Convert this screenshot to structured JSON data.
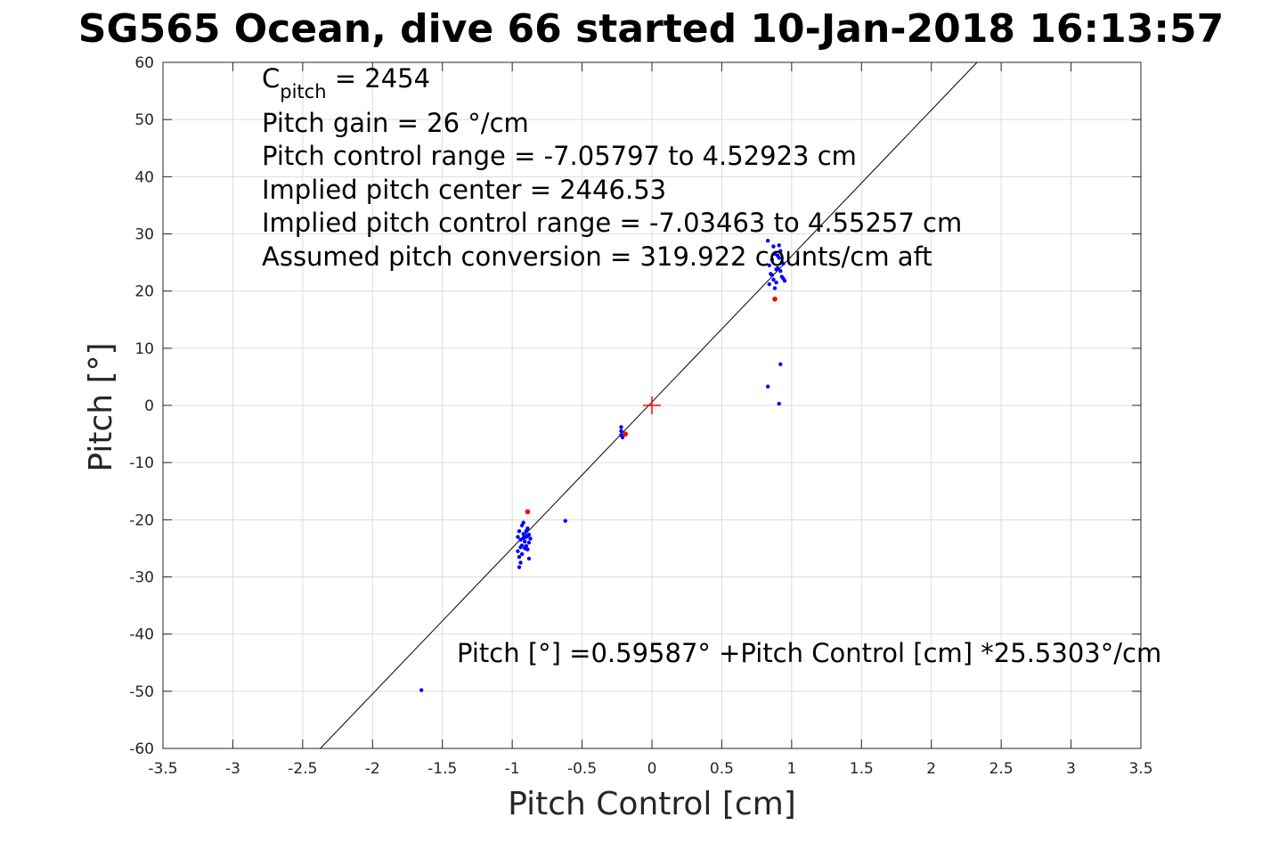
{
  "chart_data": {
    "type": "scatter",
    "title": "SG565 Ocean, dive 66 started 10-Jan-2018 16:13:57",
    "xlabel": "Pitch Control [cm]",
    "ylabel": "Pitch [°]",
    "xlim": [
      -3.5,
      3.5
    ],
    "ylim": [
      -60,
      60
    ],
    "x_ticks": [
      -3.5,
      -3,
      -2.5,
      -2,
      -1.5,
      -1,
      -0.5,
      0,
      0.5,
      1,
      1.5,
      2,
      2.5,
      3,
      3.5
    ],
    "x_tick_labels": [
      "-3.5",
      "-3",
      "-2.5",
      "-2",
      "-1.5",
      "-1",
      "-0.5",
      "0",
      "0.5",
      "1",
      "1.5",
      "2",
      "2.5",
      "3",
      "3.5"
    ],
    "y_ticks": [
      60,
      50,
      40,
      30,
      20,
      10,
      0,
      -10,
      -20,
      -30,
      -40,
      -50,
      -60
    ],
    "y_tick_labels": [
      "60",
      "50",
      "40",
      "30",
      "20",
      "10",
      "0",
      "-10",
      "-20",
      "-30",
      "-40",
      "-50",
      "-60"
    ],
    "grid": true,
    "annotations": {
      "c_pitch_main": "C",
      "c_pitch_sub": "pitch",
      "c_pitch_value": " = 2454",
      "pitch_gain": "Pitch gain = 26 °/cm",
      "pitch_control_range": "Pitch control range = -7.05797 to 4.52923 cm",
      "implied_center": "Implied pitch center = 2446.53",
      "implied_range": "Implied pitch control range = -7.03463 to 4.55257 cm",
      "assumed_conversion": "Assumed pitch conversion = 319.922 counts/cm aft",
      "fit_equation": "Pitch [°] =0.59587° +Pitch Control [cm] *25.5303°/cm"
    },
    "fit_line": {
      "intercept": 0.59587,
      "slope": 25.5303,
      "color": "#000000"
    },
    "center_marker": {
      "x": 0,
      "y": 0,
      "color": "#ff0000"
    },
    "series": [
      {
        "color": "#0000ff",
        "points": [
          [
            -0.95,
            -22.0
          ],
          [
            -0.94,
            -23.5
          ],
          [
            -0.93,
            -24.5
          ],
          [
            -0.92,
            -22.5
          ],
          [
            -0.91,
            -25.0
          ],
          [
            -0.9,
            -23.0
          ],
          [
            -0.89,
            -21.5
          ],
          [
            -0.88,
            -24.0
          ],
          [
            -0.96,
            -25.5
          ],
          [
            -0.95,
            -26.5
          ],
          [
            -0.94,
            -27.5
          ],
          [
            -0.95,
            -28.3
          ],
          [
            -0.93,
            -21.0
          ],
          [
            -0.92,
            -20.5
          ],
          [
            -0.9,
            -22.0
          ],
          [
            -0.91,
            -23.8
          ],
          [
            -0.89,
            -25.2
          ],
          [
            -0.88,
            -22.6
          ],
          [
            -0.87,
            -23.3
          ],
          [
            -0.96,
            -23.0
          ],
          [
            -0.94,
            -24.8
          ],
          [
            -0.93,
            -26.0
          ],
          [
            -0.92,
            -23.2
          ],
          [
            -0.9,
            -24.6
          ],
          [
            -0.89,
            -22.8
          ],
          [
            -0.88,
            -26.8
          ],
          [
            -0.62,
            -20.2
          ],
          [
            -1.65,
            -49.8
          ],
          [
            -0.22,
            -3.8
          ],
          [
            -0.22,
            -4.5
          ],
          [
            -0.22,
            -5.2
          ],
          [
            -0.21,
            -5.6
          ],
          [
            0.83,
            28.8
          ],
          [
            0.84,
            24.5
          ],
          [
            0.85,
            23.0
          ],
          [
            0.86,
            25.5
          ],
          [
            0.87,
            22.0
          ],
          [
            0.88,
            26.5
          ],
          [
            0.89,
            21.5
          ],
          [
            0.9,
            24.0
          ],
          [
            0.91,
            25.8
          ],
          [
            0.92,
            23.5
          ],
          [
            0.93,
            22.5
          ],
          [
            0.94,
            24.8
          ],
          [
            0.95,
            21.8
          ],
          [
            0.88,
            20.5
          ],
          [
            0.87,
            27.8
          ],
          [
            0.91,
            28.0
          ],
          [
            0.86,
            22.8
          ],
          [
            0.9,
            26.2
          ],
          [
            0.93,
            25.0
          ],
          [
            0.84,
            21.2
          ],
          [
            0.89,
            23.8
          ],
          [
            0.92,
            27.0
          ],
          [
            0.94,
            22.2
          ],
          [
            0.92,
            7.2
          ],
          [
            0.83,
            3.3
          ],
          [
            0.91,
            0.3
          ]
        ]
      },
      {
        "color": "#ff0000",
        "points": [
          [
            -0.89,
            -18.6
          ],
          [
            0.88,
            18.6
          ],
          [
            -0.19,
            -5.0
          ]
        ]
      }
    ]
  }
}
